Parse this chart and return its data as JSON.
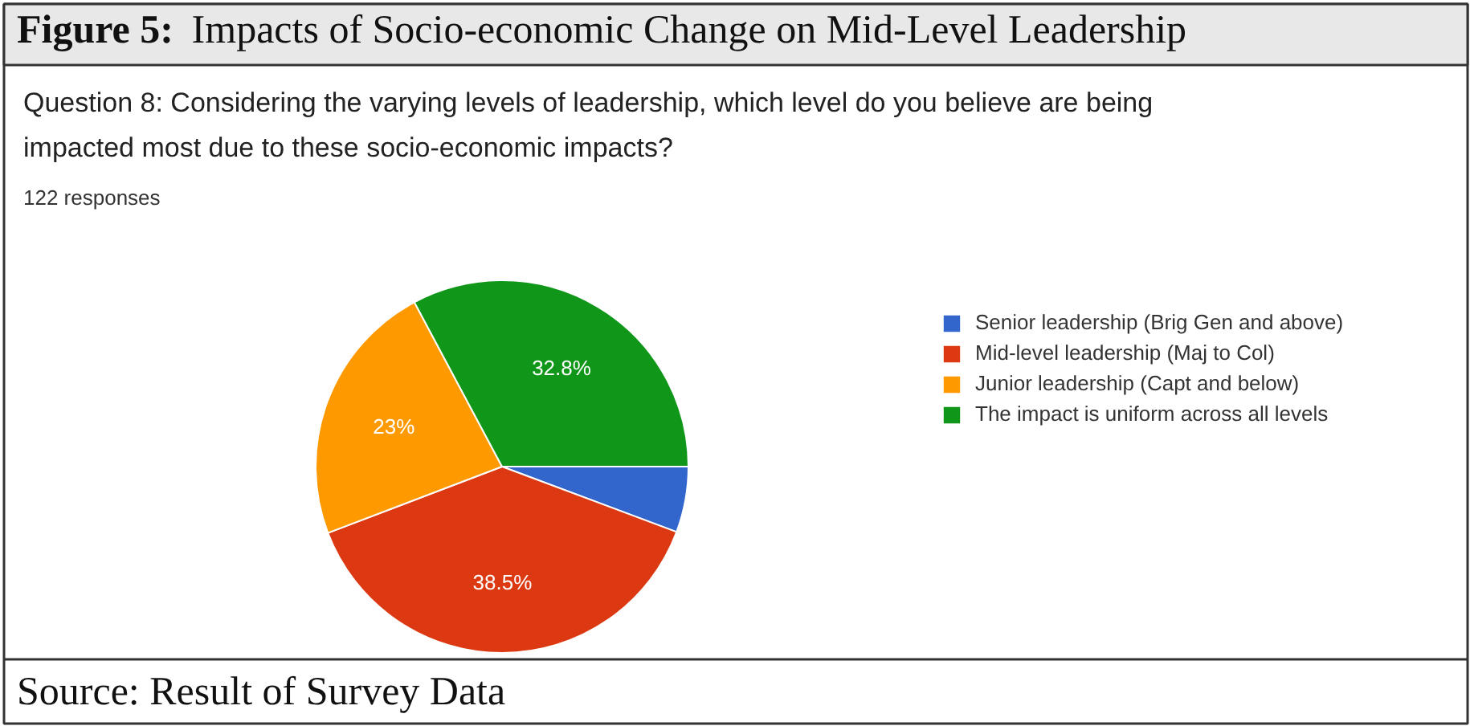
{
  "chart_data": {
    "type": "pie",
    "title": "Figure 5: Impacts of Socio-economic Change on Mid-Level Leadership",
    "subtitle": "Question 8:  Considering the varying levels of leadership, which level do you believe are being impacted most due to these socio-economic impacts?",
    "categories": [
      "Senior leadership (Brig Gen and above)",
      "Mid-level leadership (Maj to Col)",
      "Junior leadership (Capt and below)",
      "The impact is uniform across all levels"
    ],
    "values": [
      5.7,
      38.5,
      23,
      32.8
    ],
    "colors": [
      "#3366cc",
      "#dc3912",
      "#ff9900",
      "#109618"
    ],
    "value_labels": [
      null,
      "38.5%",
      "23%",
      "32.8%"
    ],
    "legend": "right",
    "annotations": [
      "122 responses",
      "Source: Result of Survey Data"
    ]
  }
}
